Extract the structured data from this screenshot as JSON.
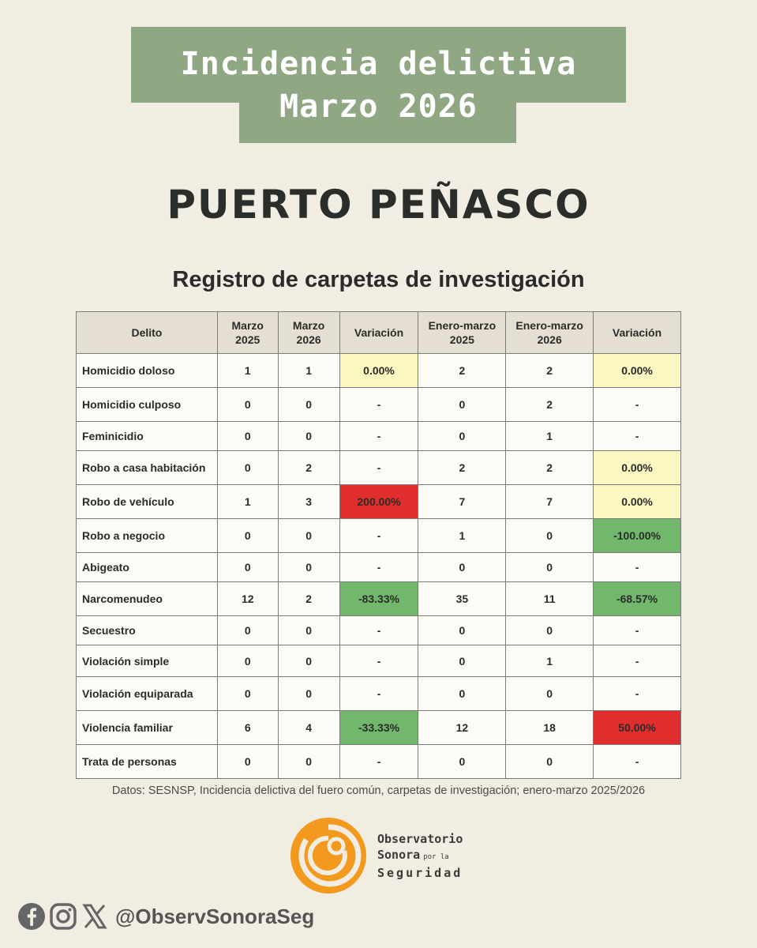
{
  "title": {
    "line1": "Incidencia delictiva",
    "line2": "Marzo 2026"
  },
  "city": "PUERTO PEÑASCO",
  "subtitle": "Registro de carpetas de investigación",
  "table": {
    "headers": [
      "Delito",
      "Marzo\n2025",
      "Marzo\n2026",
      "Variación",
      "Enero-marzo\n2025",
      "Enero-marzo\n2026",
      "Variación"
    ],
    "rows": [
      {
        "delito": "Homicidio doloso",
        "m2025": "1",
        "m2026": "1",
        "var1": "0.00%",
        "var1_color": "yellow",
        "em2025": "2",
        "em2026": "2",
        "var2": "0.00%",
        "var2_color": "yellow"
      },
      {
        "delito": "Homicidio culposo",
        "m2025": "0",
        "m2026": "0",
        "var1": "-",
        "var1_color": "none",
        "em2025": "0",
        "em2026": "2",
        "var2": "-",
        "var2_color": "none"
      },
      {
        "delito": "Feminicidio",
        "m2025": "0",
        "m2026": "0",
        "var1": "-",
        "var1_color": "none",
        "em2025": "0",
        "em2026": "1",
        "var2": "-",
        "var2_color": "none"
      },
      {
        "delito": "Robo a casa habitación",
        "m2025": "0",
        "m2026": "2",
        "var1": "-",
        "var1_color": "none",
        "em2025": "2",
        "em2026": "2",
        "var2": "0.00%",
        "var2_color": "yellow"
      },
      {
        "delito": "Robo de vehículo",
        "m2025": "1",
        "m2026": "3",
        "var1": "200.00%",
        "var1_color": "red",
        "em2025": "7",
        "em2026": "7",
        "var2": "0.00%",
        "var2_color": "yellow"
      },
      {
        "delito": "Robo a negocio",
        "m2025": "0",
        "m2026": "0",
        "var1": "-",
        "var1_color": "none",
        "em2025": "1",
        "em2026": "0",
        "var2": "-100.00%",
        "var2_color": "green"
      },
      {
        "delito": "Abigeato",
        "m2025": "0",
        "m2026": "0",
        "var1": "-",
        "var1_color": "none",
        "em2025": "0",
        "em2026": "0",
        "var2": "-",
        "var2_color": "none"
      },
      {
        "delito": "Narcomenudeo",
        "m2025": "12",
        "m2026": "2",
        "var1": "-83.33%",
        "var1_color": "green",
        "em2025": "35",
        "em2026": "11",
        "var2": "-68.57%",
        "var2_color": "green"
      },
      {
        "delito": "Secuestro",
        "m2025": "0",
        "m2026": "0",
        "var1": "-",
        "var1_color": "none",
        "em2025": "0",
        "em2026": "0",
        "var2": "-",
        "var2_color": "none"
      },
      {
        "delito": "Violación simple",
        "m2025": "0",
        "m2026": "0",
        "var1": "-",
        "var1_color": "none",
        "em2025": "0",
        "em2026": "1",
        "var2": "-",
        "var2_color": "none"
      },
      {
        "delito": "Violación equiparada",
        "m2025": "0",
        "m2026": "0",
        "var1": "-",
        "var1_color": "none",
        "em2025": "0",
        "em2026": "0",
        "var2": "-",
        "var2_color": "none"
      },
      {
        "delito": "Violencia familiar",
        "m2025": "6",
        "m2026": "4",
        "var1": "-33.33%",
        "var1_color": "green",
        "em2025": "12",
        "em2026": "18",
        "var2": "50.00%",
        "var2_color": "red"
      },
      {
        "delito": "Trata de personas",
        "m2025": "0",
        "m2026": "0",
        "var1": "-",
        "var1_color": "none",
        "em2025": "0",
        "em2026": "0",
        "var2": "-",
        "var2_color": "none"
      }
    ]
  },
  "source": "Datos: SESNSP, Incidencia delictiva del fuero común, carpetas de investigación; enero-marzo 2025/2026",
  "logo": {
    "line1": "Observatorio",
    "line2": "Sonora",
    "line2_small": "por la",
    "line3": "Seguridad"
  },
  "social": {
    "icons": [
      "facebook-icon",
      "instagram-icon",
      "x-icon"
    ],
    "handle": "@ObservSonoraSeg"
  },
  "colors": {
    "background": "#f1ede3",
    "title_box": "#8fa883",
    "yellow": "#fbf7c0",
    "red": "#e02e2e",
    "green": "#72b86c",
    "logo_orange": "#f39a1e"
  }
}
